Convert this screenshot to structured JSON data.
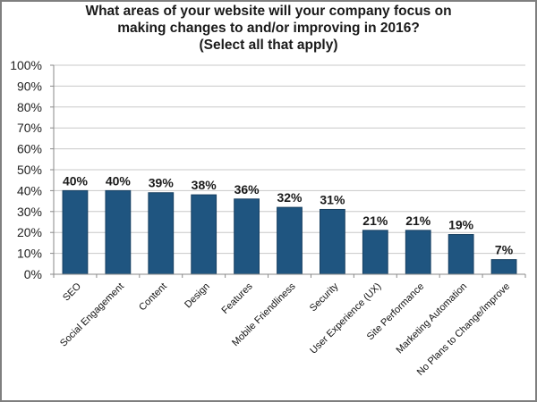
{
  "chart_data": {
    "type": "bar",
    "title": "What areas of your website will your company focus on making changes to and/or improving in 2016? (Select all that apply)",
    "title_lines": [
      "What areas of your website will your company focus on",
      "making changes to and/or improving in 2016?",
      "(Select all that apply)"
    ],
    "xlabel": "",
    "ylabel": "",
    "ylim": [
      0,
      100
    ],
    "yticks": [
      "0%",
      "10%",
      "20%",
      "30%",
      "40%",
      "50%",
      "60%",
      "70%",
      "80%",
      "90%",
      "100%"
    ],
    "grid": true,
    "legend": "none",
    "bar_color": "#1f5580",
    "categories": [
      "SEO",
      "Social Engagement",
      "Content",
      "Design",
      "Features",
      "Mobile Friendliness",
      "Security",
      "User Experience (UX)",
      "Site Performance",
      "Marketing Automation",
      "No Plans to Change/Improve"
    ],
    "values": [
      40,
      40,
      39,
      38,
      36,
      32,
      31,
      21,
      21,
      19,
      7
    ],
    "data_labels": [
      "40%",
      "40%",
      "39%",
      "38%",
      "36%",
      "32%",
      "31%",
      "21%",
      "21%",
      "19%",
      "7%"
    ]
  }
}
